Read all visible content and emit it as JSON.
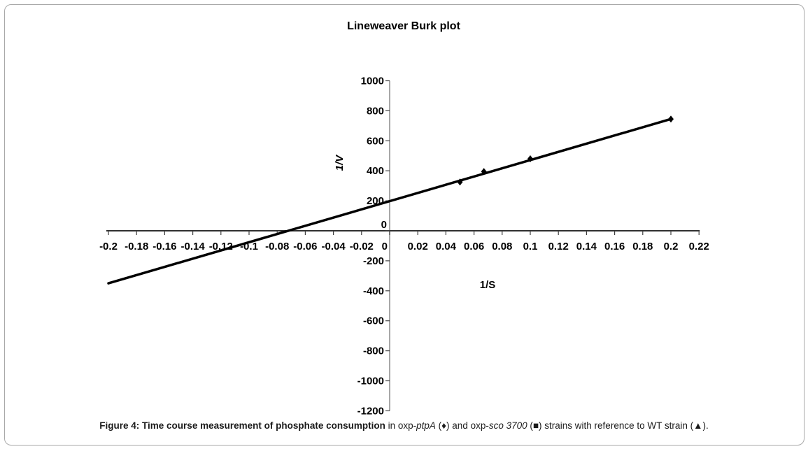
{
  "chart_data": {
    "type": "scatter",
    "title": "Lineweaver Burk plot",
    "xlabel": "1/S",
    "ylabel": "1/V",
    "xlim": [
      -0.2,
      0.22
    ],
    "ylim": [
      -1200,
      1000
    ],
    "grid": false,
    "legend_position": "none",
    "x_ticks": [
      "-0.2",
      "-0.18",
      "-0.16",
      "-0.14",
      "-0.12",
      "-0.1",
      "-0.08",
      "-0.06",
      "-0.04",
      "-0.02",
      "0",
      "0.02",
      "0.04",
      "0.06",
      "0.08",
      "0.1",
      "0.12",
      "0.14",
      "0.16",
      "0.18",
      "0.2",
      "0.22"
    ],
    "y_ticks": [
      "1000",
      "800",
      "600",
      "400",
      "200",
      "0",
      "-200",
      "-400",
      "-600",
      "-800",
      "-1000",
      "-1200"
    ],
    "series": [
      {
        "name": "oxp-ptpA",
        "marker": "diamond",
        "color": "#000000",
        "points": [
          [
            0.05,
            325
          ],
          [
            0.067,
            395
          ],
          [
            0.1,
            480
          ],
          [
            0.2,
            745
          ]
        ]
      }
    ],
    "trendline": {
      "x1": -0.2,
      "y1": -350,
      "x2": 0.2,
      "y2": 745,
      "color": "#000000",
      "x_intercept": -0.072,
      "y_intercept": 198
    }
  },
  "caption": {
    "segments": [
      {
        "text": "Figure 4: Time course measurement of phosphate consumption",
        "bold": true,
        "italic": false
      },
      {
        "text": " in oxp-",
        "bold": false,
        "italic": false
      },
      {
        "text": "ptpA",
        "bold": false,
        "italic": true
      },
      {
        "text": " (♦) and oxp-",
        "bold": false,
        "italic": false
      },
      {
        "text": "sco 3700",
        "bold": false,
        "italic": true
      },
      {
        "text": " (■) strains with reference to WT strain (▲).",
        "bold": false,
        "italic": false
      }
    ]
  },
  "colors": {
    "background": "#ffffff",
    "border": "#a9a9a9",
    "y_axis_line": "#8c8c8c",
    "x_axis_line": "#303030",
    "tick": "#404040",
    "text": "#000000",
    "series": "#000000"
  }
}
